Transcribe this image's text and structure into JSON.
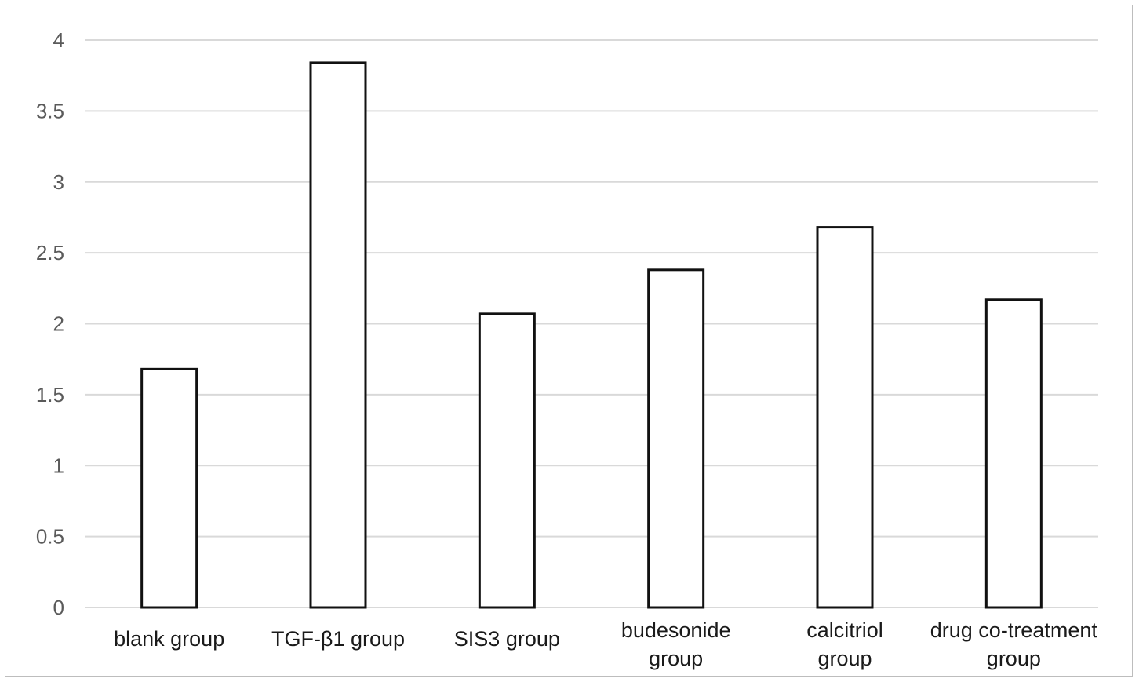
{
  "chart_data": {
    "type": "bar",
    "title": "",
    "xlabel": "",
    "ylabel": "",
    "categories": [
      [
        "blank group"
      ],
      [
        "TGF-β1 group"
      ],
      [
        "SIS3 group"
      ],
      [
        "budesonide",
        "group"
      ],
      [
        "calcitriol",
        "group"
      ],
      [
        "drug co-treatment",
        "group"
      ]
    ],
    "values": [
      1.68,
      3.84,
      2.07,
      2.38,
      2.68,
      2.17
    ],
    "ylim": [
      0,
      4
    ],
    "yticks": [
      "0",
      "0.5",
      "1",
      "1.5",
      "2",
      "2.5",
      "3",
      "3.5",
      "4"
    ],
    "grid": true,
    "legend": "none",
    "colors": {
      "bar_fill": "#ffffff",
      "bar_stroke": "#111111",
      "grid": "#d9d9d9",
      "tick_text": "#5a5a5a",
      "category_text": "#1a1a1a"
    }
  }
}
